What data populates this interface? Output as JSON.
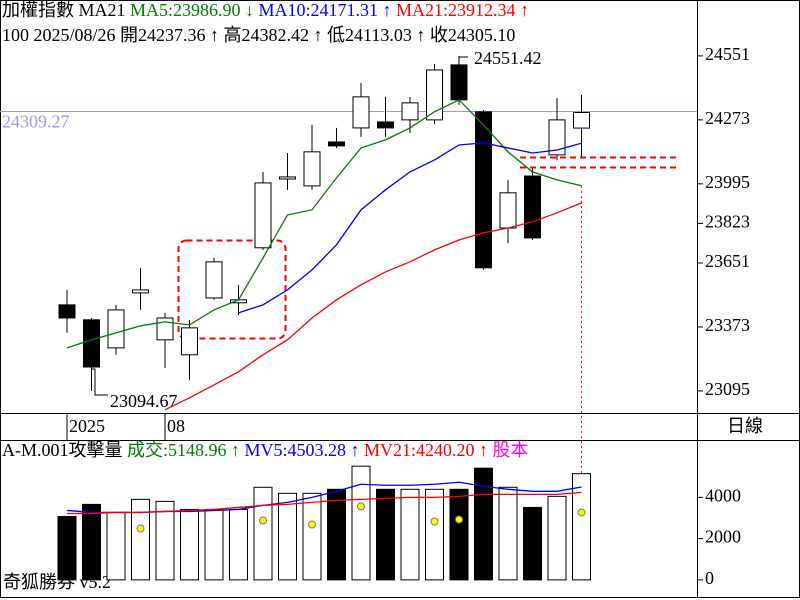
{
  "page": {
    "period": "日線",
    "footer": "奇狐勝券 v5.2"
  },
  "chart_data": [
    {
      "type": "candlestick",
      "title": "加權指數 MA21",
      "info": [
        "100",
        "2025/08/26"
      ],
      "ohlc_labels": [
        "開24237.36 ↑",
        "高24382.42 ↑",
        "低24113.03 ↑",
        "收24305.10"
      ],
      "categories": [
        "2025",
        null,
        null,
        null,
        "08",
        null,
        null,
        null,
        null,
        null,
        null,
        null,
        null,
        null,
        null,
        null,
        null,
        null,
        null,
        null,
        null,
        null
      ],
      "open": [
        23469,
        23404,
        23282,
        23521,
        23317,
        23252,
        23499,
        23478,
        23717,
        24016,
        23986,
        24177,
        24238,
        24264,
        24273,
        24273,
        24512,
        24308,
        23803,
        24029,
        24121,
        24237.36
      ],
      "high": [
        23534,
        23412,
        23469,
        23630,
        23434,
        23404,
        23673,
        23556,
        24047,
        24129,
        24251,
        24238,
        24434,
        24373,
        24373,
        24516,
        24551.42,
        24316,
        24012,
        24064,
        24368,
        24382.42
      ],
      "low": [
        23347,
        23094.67,
        23252,
        23447,
        23195,
        23143,
        23491,
        23425,
        23708,
        23969,
        23969,
        24151,
        24199,
        24199,
        24216,
        24255,
        24338,
        23621,
        23738,
        23751,
        24099,
        24113.03
      ],
      "close": [
        23412,
        23199,
        23447,
        23534,
        23412,
        23369,
        23656,
        23491,
        23999,
        24025,
        24134,
        24160,
        24373,
        24238,
        24347,
        24490,
        24360,
        23630,
        23956,
        23760,
        24273,
        24305.1
      ],
      "series": [
        {
          "name": "MA5:23986.90",
          "arrow": "↓",
          "color": "#008000",
          "values": [
            23282,
            23317,
            23347,
            23378,
            23395,
            23382,
            23447,
            23491,
            23673,
            23860,
            23882,
            24021,
            24151,
            24186,
            24238,
            24308,
            24360,
            24251,
            24134,
            24047,
            24012,
            23986.9
          ]
        },
        {
          "name": "MA10:24171.31",
          "arrow": "↑",
          "color": "#0000ff",
          "values": [
            null,
            null,
            null,
            null,
            null,
            null,
            null,
            23434,
            23469,
            23534,
            23621,
            23730,
            23882,
            23969,
            24047,
            24099,
            24164,
            24173,
            24151,
            24129,
            24142,
            24171.31
          ]
        },
        {
          "name": "MA21:23912.34",
          "arrow": "↑",
          "color": "#ff0000",
          "values": [
            null,
            null,
            null,
            null,
            23013,
            23065,
            23121,
            23178,
            23252,
            23317,
            23412,
            23491,
            23556,
            23612,
            23656,
            23708,
            23751,
            23782,
            23803,
            23830,
            23869,
            23912.34
          ]
        }
      ],
      "last_price_line": {
        "value": 24309.27,
        "color": "#9a9ae8"
      },
      "ylim": [
        22999,
        24794
      ],
      "yticks": [
        24551,
        24273,
        23995,
        23823,
        23651,
        23373,
        23095
      ]
    },
    {
      "type": "bar",
      "title": "A-M.001攻擊量",
      "bar_label": "成交:5148.96",
      "bar_label_arrow": "↑",
      "bar_label_color": "#008000",
      "extra_label": "股本",
      "extra_label_color": "#ff00ff",
      "values": [
        3073,
        3659,
        3268,
        3902,
        3805,
        3415,
        3415,
        3415,
        4488,
        4195,
        4195,
        4390,
        5512,
        4390,
        4390,
        4390,
        4390,
        5415,
        4488,
        3512,
        4049,
        5148.96
      ],
      "series": [
        {
          "name": "MV5:4503.28",
          "arrow": "↑",
          "color": "#0000ff",
          "values": [
            3366,
            3268,
            3268,
            3268,
            3317,
            3317,
            3366,
            3415,
            3610,
            3756,
            4000,
            4293,
            4634,
            4585,
            4585,
            4634,
            4732,
            4537,
            4390,
            4293,
            4293,
            4503.28
          ]
        },
        {
          "name": "MV21:4240.20",
          "arrow": "↑",
          "color": "#ff0000",
          "values": [
            3219,
            3219,
            3268,
            3268,
            3317,
            3366,
            3415,
            3512,
            3610,
            3659,
            3756,
            3854,
            3902,
            3951,
            4000,
            4000,
            4049,
            4146,
            4146,
            4146,
            4146,
            4240.2
          ]
        }
      ],
      "markers": {
        "color": "#ffff00",
        "values": [
          null,
          null,
          null,
          2488,
          null,
          null,
          null,
          null,
          2878,
          null,
          2683,
          null,
          3561,
          null,
          null,
          2829,
          2927,
          null,
          null,
          null,
          null,
          3268
        ]
      },
      "ylim": [
        -830,
        6780
      ],
      "yticks": [
        4000,
        2000,
        0
      ]
    }
  ]
}
